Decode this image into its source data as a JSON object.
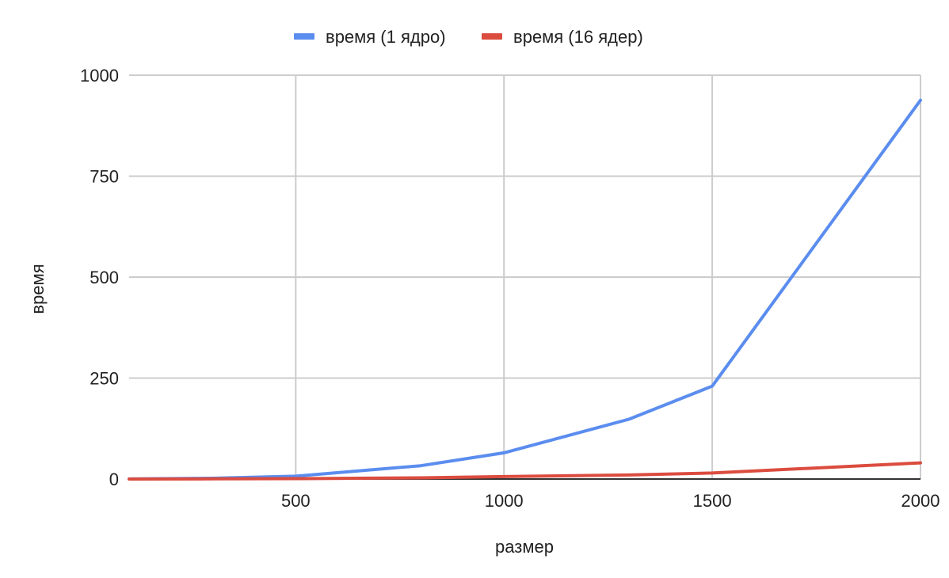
{
  "chart_data": {
    "type": "line",
    "title": "",
    "xlabel": "размер",
    "ylabel": "время",
    "xlim": [
      100,
      2000
    ],
    "ylim": [
      0,
      1000
    ],
    "x_ticks": [
      500,
      1000,
      1500,
      2000
    ],
    "y_ticks": [
      0,
      250,
      500,
      750,
      1000
    ],
    "grid": true,
    "legend_position": "top",
    "x": [
      100,
      300,
      500,
      800,
      1000,
      1300,
      1500,
      2000
    ],
    "series": [
      {
        "name": "время (1 ядро)",
        "color": "#5b8def",
        "values": [
          0.1,
          2,
          7,
          33,
          65,
          148,
          230,
          938
        ]
      },
      {
        "name": "время (16 ядер)",
        "color": "#db4c3f",
        "values": [
          0.05,
          0.3,
          1,
          3,
          6,
          10,
          15,
          40
        ]
      }
    ]
  }
}
